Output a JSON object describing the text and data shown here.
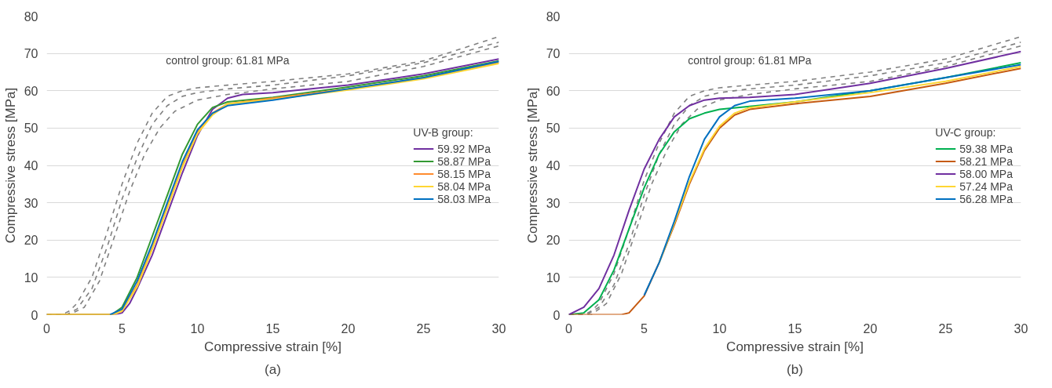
{
  "chart_data": [
    {
      "type": "line",
      "title": "(a)",
      "xlabel": "Compressive strain [%]",
      "ylabel": "Compressive stress [MPa]",
      "xlim": [
        0,
        30
      ],
      "xticks": [
        0,
        5,
        10,
        15,
        20,
        25,
        30
      ],
      "ylim": [
        0,
        80
      ],
      "yticks": [
        0,
        10,
        20,
        30,
        40,
        50,
        60,
        70,
        80
      ],
      "grid": "y",
      "legend": "right",
      "legend_title": "UV-B group:",
      "annotations": [
        "control group: 61.81 MPa"
      ],
      "series": [
        {
          "color": "#808080",
          "line_style": "dashed",
          "x": [
            0,
            1,
            1.5,
            2,
            3,
            4,
            5,
            6,
            7,
            8,
            9,
            10,
            12,
            15,
            20,
            25,
            30
          ],
          "values": [
            0,
            0,
            1,
            3,
            10,
            22,
            35,
            46,
            54,
            58.5,
            60,
            60.8,
            61.5,
            62.5,
            64.5,
            68,
            74.5
          ]
        },
        {
          "color": "#808080",
          "line_style": "dashed",
          "x": [
            0,
            1.3,
            2,
            3,
            4,
            5,
            6,
            7,
            8,
            9,
            10,
            12,
            15,
            20,
            25,
            30
          ],
          "values": [
            0,
            0,
            1.5,
            7,
            18,
            31,
            42,
            51,
            56,
            58.5,
            59.5,
            60.5,
            61.5,
            64,
            67.5,
            73
          ]
        },
        {
          "color": "#808080",
          "line_style": "dashed",
          "x": [
            0,
            1.5,
            2.5,
            3.5,
            4.5,
            5.5,
            6.5,
            7.5,
            8.5,
            10,
            12,
            15,
            20,
            25,
            30
          ],
          "values": [
            0,
            0,
            2,
            9,
            21,
            33,
            43,
            50,
            54.5,
            57.5,
            59,
            60.5,
            62.5,
            66.5,
            72
          ]
        },
        {
          "name": "59.92 MPa",
          "color": "#7030a0",
          "line_style": "solid",
          "x": [
            0,
            4.5,
            5,
            5.5,
            6,
            7,
            8,
            9,
            10,
            11,
            12,
            13,
            15,
            20,
            25,
            30
          ],
          "values": [
            0,
            0,
            0.5,
            3,
            7,
            16,
            27,
            38,
            48,
            55,
            58,
            59,
            59.5,
            61.5,
            64.5,
            68.5
          ]
        },
        {
          "name": "58.87 MPa",
          "color": "#339933",
          "line_style": "solid",
          "x": [
            0,
            4.3,
            5,
            6,
            7,
            8,
            9,
            10,
            11,
            12,
            15,
            20,
            25,
            30
          ],
          "values": [
            0,
            0,
            2,
            10,
            21,
            32,
            43,
            51,
            55.5,
            57,
            58.2,
            61,
            64,
            68
          ]
        },
        {
          "name": "58.15 MPa",
          "color": "#ff8c2e",
          "line_style": "solid",
          "x": [
            0,
            4.4,
            5,
            6,
            7,
            8,
            9,
            10,
            11,
            12,
            15,
            20,
            25,
            30
          ],
          "values": [
            0,
            0,
            1,
            8,
            18,
            29,
            40,
            49,
            54,
            56.5,
            58,
            60.5,
            63.5,
            67.5
          ]
        },
        {
          "name": "58.04 MPa",
          "color": "#ffd633",
          "line_style": "solid",
          "x": [
            0,
            4.4,
            5,
            6,
            7,
            8,
            9,
            10,
            11,
            12,
            15,
            20,
            25,
            30
          ],
          "values": [
            0,
            0,
            1,
            7.5,
            17.5,
            28.5,
            39.5,
            48.5,
            53.5,
            56.5,
            57.7,
            60.2,
            63.2,
            67.3
          ]
        },
        {
          "name": "58.03 MPa",
          "color": "#0070c0",
          "line_style": "solid",
          "x": [
            4.2,
            5,
            6,
            7,
            8,
            9,
            10,
            11,
            12,
            15,
            20,
            25,
            30
          ],
          "values": [
            0,
            1.5,
            9,
            19,
            30,
            41,
            49.5,
            54,
            56,
            57.5,
            60.5,
            63.5,
            67.8
          ]
        }
      ]
    },
    {
      "type": "line",
      "title": "(b)",
      "xlabel": "Compressive strain [%]",
      "ylabel": "Compressive stress [MPa]",
      "xlim": [
        0,
        30
      ],
      "xticks": [
        0,
        5,
        10,
        15,
        20,
        25,
        30
      ],
      "ylim": [
        0,
        80
      ],
      "yticks": [
        0,
        10,
        20,
        30,
        40,
        50,
        60,
        70,
        80
      ],
      "grid": "y",
      "legend": "right",
      "legend_title": "UV-C group:",
      "annotations": [
        "control group: 61.81 MPa"
      ],
      "series": [
        {
          "color": "#808080",
          "line_style": "dashed",
          "x": [
            0,
            1,
            1.5,
            2,
            3,
            4,
            5,
            6,
            7,
            8,
            9,
            10,
            12,
            15,
            20,
            25,
            30
          ],
          "values": [
            0,
            0,
            1,
            3,
            11,
            23,
            36,
            46,
            54,
            58.5,
            60,
            60.8,
            61.5,
            62.5,
            65,
            68.5,
            74.5
          ]
        },
        {
          "color": "#808080",
          "line_style": "dashed",
          "x": [
            0,
            1.2,
            2,
            3,
            4,
            5,
            6,
            7,
            8,
            9,
            10,
            12,
            15,
            20,
            25,
            30
          ],
          "values": [
            0,
            0,
            2,
            8,
            19,
            32,
            43,
            51,
            56,
            58.5,
            59.5,
            60.5,
            61.5,
            64,
            67.5,
            73
          ]
        },
        {
          "color": "#808080",
          "line_style": "dashed",
          "x": [
            0,
            1.5,
            2.5,
            3.5,
            4.5,
            5.5,
            6.5,
            7.5,
            8.5,
            10,
            12,
            15,
            20,
            25,
            30
          ],
          "values": [
            0,
            0,
            3,
            11,
            23,
            35,
            44,
            51,
            55,
            57.5,
            59,
            60.5,
            62.5,
            66.5,
            72
          ]
        },
        {
          "name": "59.38 MPa",
          "color": "#00b050",
          "line_style": "solid",
          "x": [
            0,
            1,
            2,
            3,
            4,
            5,
            6,
            7,
            8,
            9,
            10,
            12,
            15,
            20,
            25,
            30
          ],
          "values": [
            0,
            0.5,
            4,
            12,
            23,
            34,
            43,
            49,
            52.5,
            54,
            55,
            55.8,
            57,
            60,
            63.5,
            67.5
          ]
        },
        {
          "name": "58.21 MPa",
          "color": "#c55a11",
          "line_style": "solid",
          "x": [
            0,
            3.5,
            4,
            5,
            6,
            7,
            8,
            9,
            10,
            11,
            12,
            15,
            20,
            25,
            30
          ],
          "values": [
            0,
            0,
            0.5,
            5,
            14,
            24,
            35,
            44,
            50,
            53.5,
            55,
            56.5,
            58.5,
            62,
            66
          ]
        },
        {
          "name": "58.00 MPa",
          "color": "#7030a0",
          "line_style": "solid",
          "x": [
            0,
            1,
            2,
            3,
            4,
            5,
            6,
            7,
            8,
            9,
            10,
            12,
            15,
            20,
            25,
            30
          ],
          "values": [
            0,
            2,
            7,
            16,
            28,
            39,
            47,
            53,
            56,
            57.5,
            58,
            58.2,
            59,
            62,
            66,
            70.5
          ]
        },
        {
          "name": "57.24 MPa",
          "color": "#ffd633",
          "line_style": "solid",
          "x": [
            6,
            7,
            8,
            9,
            10,
            11,
            12,
            15,
            20,
            25,
            30
          ],
          "values": [
            14,
            24.5,
            35.5,
            44.5,
            50.5,
            54,
            55.5,
            57,
            59.5,
            62.5,
            66.5
          ]
        },
        {
          "name": "56.28 MPa",
          "color": "#0070c0",
          "line_style": "solid",
          "x": [
            5,
            6,
            7,
            8,
            9,
            10,
            11,
            12,
            15,
            20,
            25,
            30
          ],
          "values": [
            5.2,
            14,
            25,
            37,
            47,
            53,
            56,
            57.2,
            58,
            60,
            63.5,
            67
          ]
        }
      ]
    }
  ]
}
